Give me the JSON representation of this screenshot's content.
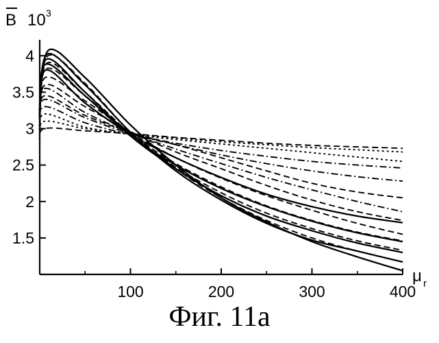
{
  "chart_data": {
    "type": "line",
    "title": "",
    "xlabel_symbol": "μ",
    "xlabel_sub": "r",
    "ylabel_symbol": "B",
    "ylabel_scale_base": "10",
    "ylabel_scale_exp": "3",
    "xlim": [
      0,
      400
    ],
    "ylim": [
      1.0,
      4.2
    ],
    "x_ticks": [
      100,
      200,
      300,
      400
    ],
    "y_ticks": [
      1.5,
      2,
      2.5,
      3,
      3.5,
      4
    ],
    "x_tick_labels": [
      "100",
      "200",
      "300",
      "400"
    ],
    "y_tick_labels": [
      "1.5",
      "2",
      "2.5",
      "3",
      "3.5",
      "4"
    ],
    "grid": false,
    "legend": "none",
    "series": [
      {
        "style": "solid",
        "points": [
          [
            0,
            3.3
          ],
          [
            10,
            4.08
          ],
          [
            50,
            3.7
          ],
          [
            100,
            3.05
          ],
          [
            150,
            2.5
          ],
          [
            200,
            2.05
          ],
          [
            250,
            1.72
          ],
          [
            300,
            1.45
          ],
          [
            350,
            1.24
          ],
          [
            400,
            1.05
          ]
        ]
      },
      {
        "style": "solid",
        "points": [
          [
            0,
            3.2
          ],
          [
            8,
            4.02
          ],
          [
            50,
            3.6
          ],
          [
            100,
            2.95
          ],
          [
            150,
            2.42
          ],
          [
            200,
            2.02
          ],
          [
            250,
            1.7
          ],
          [
            300,
            1.47
          ],
          [
            350,
            1.32
          ],
          [
            400,
            1.17
          ]
        ]
      },
      {
        "style": "solid",
        "points": [
          [
            0,
            3.1
          ],
          [
            7,
            3.95
          ],
          [
            50,
            3.5
          ],
          [
            100,
            2.9
          ],
          [
            150,
            2.45
          ],
          [
            200,
            2.08
          ],
          [
            250,
            1.8
          ],
          [
            300,
            1.6
          ],
          [
            350,
            1.43
          ],
          [
            400,
            1.3
          ]
        ]
      },
      {
        "style": "solid",
        "points": [
          [
            0,
            3.1
          ],
          [
            6,
            3.88
          ],
          [
            50,
            3.45
          ],
          [
            100,
            2.9
          ],
          [
            150,
            2.5
          ],
          [
            200,
            2.18
          ],
          [
            250,
            1.93
          ],
          [
            300,
            1.73
          ],
          [
            350,
            1.57
          ],
          [
            400,
            1.45
          ]
        ]
      },
      {
        "style": "solid",
        "points": [
          [
            0,
            3.0
          ],
          [
            6,
            3.8
          ],
          [
            50,
            3.35
          ],
          [
            100,
            2.92
          ],
          [
            150,
            2.6
          ],
          [
            200,
            2.33
          ],
          [
            250,
            2.1
          ],
          [
            300,
            1.93
          ],
          [
            350,
            1.8
          ],
          [
            400,
            1.71
          ]
        ]
      },
      {
        "style": "dashed",
        "points": [
          [
            0,
            3.2
          ],
          [
            9,
            4.0
          ],
          [
            50,
            3.62
          ],
          [
            100,
            2.95
          ],
          [
            150,
            2.45
          ],
          [
            200,
            2.05
          ],
          [
            250,
            1.74
          ],
          [
            300,
            1.5
          ],
          [
            350,
            1.32
          ],
          [
            400,
            1.17
          ]
        ]
      },
      {
        "style": "dashed",
        "points": [
          [
            0,
            3.1
          ],
          [
            8,
            3.9
          ],
          [
            50,
            3.5
          ],
          [
            100,
            2.93
          ],
          [
            150,
            2.47
          ],
          [
            200,
            2.12
          ],
          [
            250,
            1.84
          ],
          [
            300,
            1.63
          ],
          [
            350,
            1.46
          ],
          [
            400,
            1.33
          ]
        ]
      },
      {
        "style": "dashed",
        "points": [
          [
            0,
            3.05
          ],
          [
            7,
            3.82
          ],
          [
            50,
            3.45
          ],
          [
            100,
            2.93
          ],
          [
            150,
            2.52
          ],
          [
            200,
            2.2
          ],
          [
            250,
            1.94
          ],
          [
            300,
            1.74
          ],
          [
            350,
            1.58
          ],
          [
            400,
            1.46
          ]
        ]
      },
      {
        "style": "dashed",
        "points": [
          [
            0,
            3.0
          ],
          [
            6,
            3.7
          ],
          [
            50,
            3.38
          ],
          [
            100,
            2.95
          ],
          [
            150,
            2.6
          ],
          [
            200,
            2.32
          ],
          [
            250,
            2.08
          ],
          [
            300,
            1.88
          ],
          [
            350,
            1.7
          ],
          [
            400,
            1.55
          ]
        ]
      },
      {
        "style": "dashed",
        "points": [
          [
            0,
            3.0
          ],
          [
            6,
            3.6
          ],
          [
            50,
            3.3
          ],
          [
            100,
            2.96
          ],
          [
            150,
            2.68
          ],
          [
            200,
            2.45
          ],
          [
            250,
            2.22
          ],
          [
            300,
            2.02
          ],
          [
            350,
            1.86
          ],
          [
            400,
            1.74
          ]
        ]
      },
      {
        "style": "dashed",
        "points": [
          [
            0,
            3.0
          ],
          [
            5,
            3.45
          ],
          [
            50,
            3.18
          ],
          [
            100,
            2.95
          ],
          [
            150,
            2.78
          ],
          [
            200,
            2.6
          ],
          [
            250,
            2.42
          ],
          [
            300,
            2.25
          ],
          [
            350,
            2.13
          ],
          [
            400,
            2.05
          ]
        ]
      },
      {
        "style": "dashdot",
        "points": [
          [
            0,
            3.0
          ],
          [
            5,
            3.55
          ],
          [
            50,
            3.22
          ],
          [
            100,
            2.94
          ],
          [
            150,
            2.72
          ],
          [
            200,
            2.52
          ],
          [
            250,
            2.33
          ],
          [
            300,
            2.16
          ],
          [
            350,
            2.0
          ],
          [
            400,
            1.86
          ]
        ]
      },
      {
        "style": "dashdot",
        "points": [
          [
            0,
            3.0
          ],
          [
            5,
            3.4
          ],
          [
            50,
            3.15
          ],
          [
            100,
            2.93
          ],
          [
            150,
            2.78
          ],
          [
            200,
            2.64
          ],
          [
            250,
            2.52
          ],
          [
            300,
            2.42
          ],
          [
            350,
            2.34
          ],
          [
            400,
            2.28
          ]
        ]
      },
      {
        "style": "dashdot",
        "points": [
          [
            0,
            2.95
          ],
          [
            5,
            3.3
          ],
          [
            50,
            3.08
          ],
          [
            100,
            2.92
          ],
          [
            150,
            2.8
          ],
          [
            200,
            2.7
          ],
          [
            250,
            2.62
          ],
          [
            300,
            2.55
          ],
          [
            350,
            2.5
          ],
          [
            400,
            2.46
          ]
        ]
      },
      {
        "style": "dotted",
        "points": [
          [
            0,
            2.9
          ],
          [
            5,
            3.2
          ],
          [
            50,
            3.02
          ],
          [
            100,
            2.92
          ],
          [
            150,
            2.85
          ],
          [
            200,
            2.79
          ],
          [
            250,
            2.73
          ],
          [
            300,
            2.67
          ],
          [
            350,
            2.61
          ],
          [
            400,
            2.55
          ]
        ]
      },
      {
        "style": "dotted",
        "points": [
          [
            0,
            2.85
          ],
          [
            5,
            3.1
          ],
          [
            50,
            3.0
          ],
          [
            100,
            2.93
          ],
          [
            150,
            2.87
          ],
          [
            200,
            2.82
          ],
          [
            250,
            2.78
          ],
          [
            300,
            2.74
          ],
          [
            350,
            2.71
          ],
          [
            400,
            2.68
          ]
        ]
      },
      {
        "style": "dashed",
        "points": [
          [
            0,
            2.8
          ],
          [
            5,
            3.0
          ],
          [
            50,
            2.97
          ],
          [
            100,
            2.93
          ],
          [
            150,
            2.88
          ],
          [
            200,
            2.84
          ],
          [
            250,
            2.8
          ],
          [
            300,
            2.77
          ],
          [
            350,
            2.75
          ],
          [
            400,
            2.73
          ]
        ]
      }
    ]
  },
  "caption": "Фиг. 11a"
}
